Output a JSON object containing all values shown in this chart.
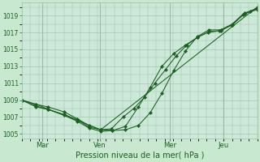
{
  "xlabel": "Pression niveau de la mer( hPa )",
  "background_color": "#c8e8d0",
  "plot_bg_color": "#cce8d8",
  "grid_color": "#9dbfaa",
  "line_color": "#1a6020",
  "ylim": [
    1004.5,
    1020.5
  ],
  "yticks": [
    1005,
    1007,
    1009,
    1011,
    1013,
    1015,
    1017,
    1019
  ],
  "xtick_labels": [
    "Mar",
    "Ven",
    "Mer",
    "Jeu"
  ],
  "xtick_positions": [
    0.085,
    0.33,
    0.63,
    0.855
  ],
  "vlines": [
    0.085,
    0.33,
    0.63,
    0.855
  ],
  "series": [
    {
      "x": [
        0.0,
        0.06,
        0.11,
        0.18,
        0.235,
        0.285,
        0.335,
        0.385,
        0.44,
        0.495,
        0.545,
        0.595,
        0.645,
        0.695,
        0.745,
        0.795,
        0.845,
        0.895,
        0.945,
        1.0
      ],
      "y": [
        1009.0,
        1008.5,
        1008.2,
        1007.6,
        1006.8,
        1006.0,
        1005.5,
        1005.4,
        1005.5,
        1006.0,
        1007.5,
        1009.8,
        1012.5,
        1014.8,
        1016.5,
        1017.3,
        1017.3,
        1018.0,
        1019.3,
        1019.8
      ]
    },
    {
      "x": [
        0.0,
        0.06,
        0.11,
        0.18,
        0.235,
        0.285,
        0.335,
        0.385,
        0.44,
        0.495,
        0.545,
        0.595,
        0.645,
        0.695,
        0.745,
        0.795,
        0.845,
        0.895,
        0.945,
        1.0
      ],
      "y": [
        1009.0,
        1008.3,
        1007.9,
        1007.2,
        1006.5,
        1005.7,
        1005.3,
        1005.4,
        1005.9,
        1008.2,
        1010.5,
        1013.0,
        1014.5,
        1015.5,
        1016.4,
        1017.1,
        1017.2,
        1017.9,
        1019.2,
        1019.7
      ]
    },
    {
      "x": [
        0.0,
        0.06,
        0.11,
        0.18,
        0.235,
        0.285,
        0.335,
        0.38,
        0.43,
        0.475,
        0.52,
        0.565,
        0.61,
        0.655,
        0.7,
        0.745,
        0.79,
        0.84,
        0.89,
        0.94,
        0.97,
        1.0
      ],
      "y": [
        1009.0,
        1008.2,
        1007.9,
        1007.3,
        1006.7,
        1005.8,
        1005.5,
        1005.6,
        1007.0,
        1008.0,
        1009.3,
        1011.0,
        1012.6,
        1014.2,
        1015.5,
        1016.4,
        1017.0,
        1017.2,
        1017.9,
        1019.1,
        1019.5,
        1019.9
      ]
    },
    {
      "x": [
        0.0,
        0.06,
        0.335,
        1.0
      ],
      "y": [
        1009.0,
        1008.5,
        1005.5,
        1020.0
      ]
    }
  ]
}
